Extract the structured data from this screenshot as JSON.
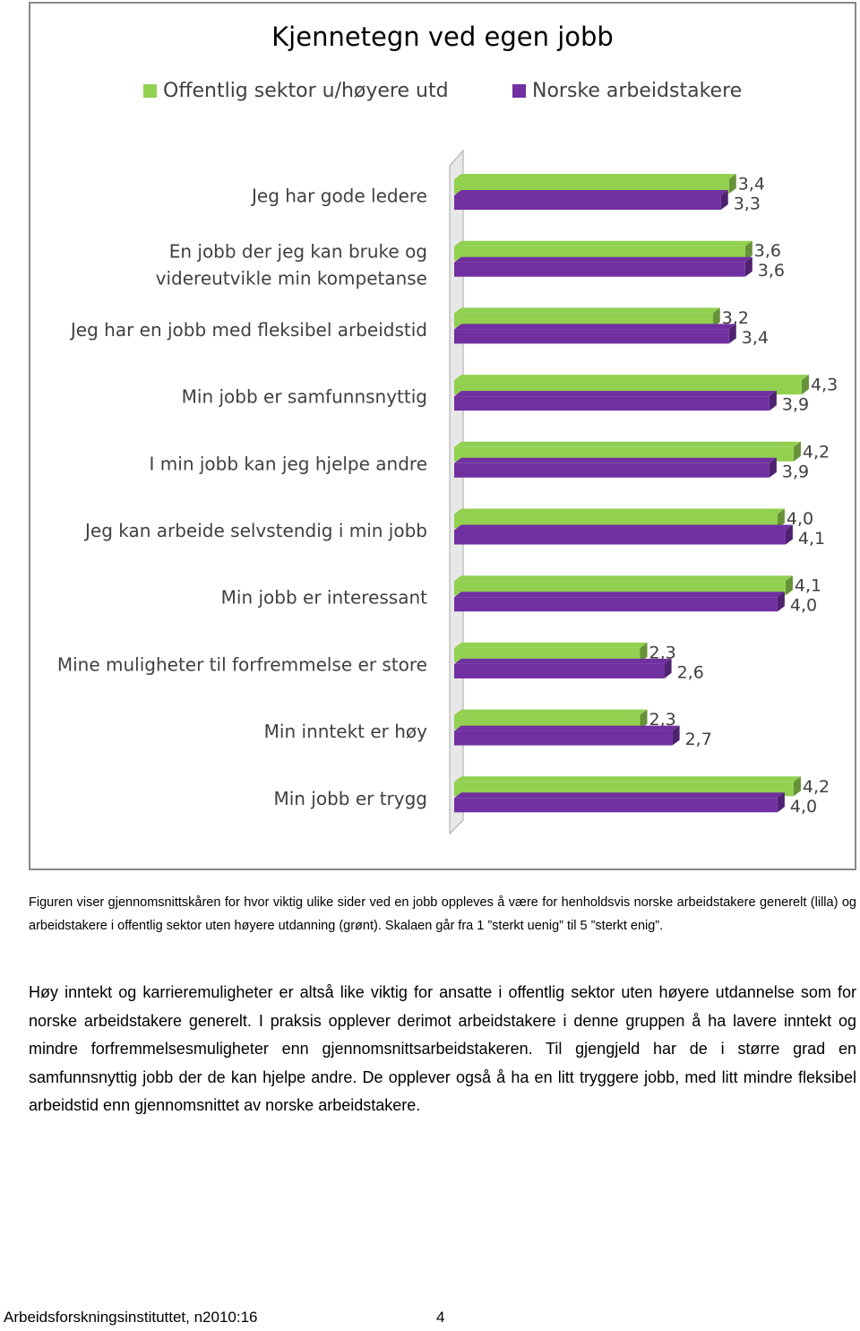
{
  "chart_data": {
    "type": "bar",
    "orientation": "horizontal",
    "title": "Kjennetegn ved egen jobb",
    "categories": [
      "Jeg har gode ledere",
      "En jobb der jeg kan bruke og videreutvikle min kompetanse",
      "Jeg har en jobb med fleksibel arbeidstid",
      "Min jobb er samfunnsnyttig",
      "I min jobb kan jeg hjelpe andre",
      "Jeg kan arbeide selvstendig i min jobb",
      "Min jobb er interessant",
      "Mine muligheter til forfremmelse er store",
      "Min inntekt er høy",
      "Min jobb er trygg"
    ],
    "series": [
      {
        "name": "Offentlig sektor u/høyere utd",
        "color": "#92d050",
        "values": [
          3.4,
          3.6,
          3.2,
          4.3,
          4.2,
          4.0,
          4.1,
          2.3,
          2.3,
          4.2
        ],
        "value_labels": [
          "3,4",
          "3,6",
          "3,2",
          "4,3",
          "4,2",
          "4,0",
          "4,1",
          "2,3",
          "2,3",
          "4,2"
        ]
      },
      {
        "name": "Norske arbeidstakere",
        "color": "#7030a0",
        "values": [
          3.3,
          3.6,
          3.4,
          3.9,
          3.9,
          4.1,
          4.0,
          2.6,
          2.7,
          4.0
        ],
        "value_labels": [
          "3,3",
          "3,6",
          "3,4",
          "3,9",
          "3,9",
          "4,1",
          "4,0",
          "2,6",
          "2,7",
          "4,0"
        ]
      }
    ],
    "xlim": [
      0,
      4.5
    ]
  },
  "caption": "Figuren viser gjennomsnittskåren for hvor viktig ulike sider ved en jobb oppleves å være for henholdsvis norske arbeidstakere generelt (lilla) og arbeidstakere i offentlig sektor uten høyere utdanning (grønt). Skalaen går fra 1 ”sterkt uenig” til 5 ”sterkt enig”.",
  "body": "Høy inntekt og karrieremuligheter er altså like viktig for ansatte i offentlig sektor uten høyere utdannelse som for norske arbeidstakere generelt. I praksis opplever derimot arbeidstakere i denne gruppen å ha lavere inntekt og mindre forfremmelsesmuligheter enn gjennomsnittsarbeidstakeren. Til gjengjeld har de i større grad en samfunnsnyttig jobb der de kan hjelpe andre. De opplever også å ha en litt tryggere jobb, med litt mindre fleksibel arbeidstid enn gjennomsnittet av norske arbeidstakere.",
  "footer": {
    "source": "Arbeidsforskningsinstituttet, n2010:16",
    "page": "4"
  }
}
